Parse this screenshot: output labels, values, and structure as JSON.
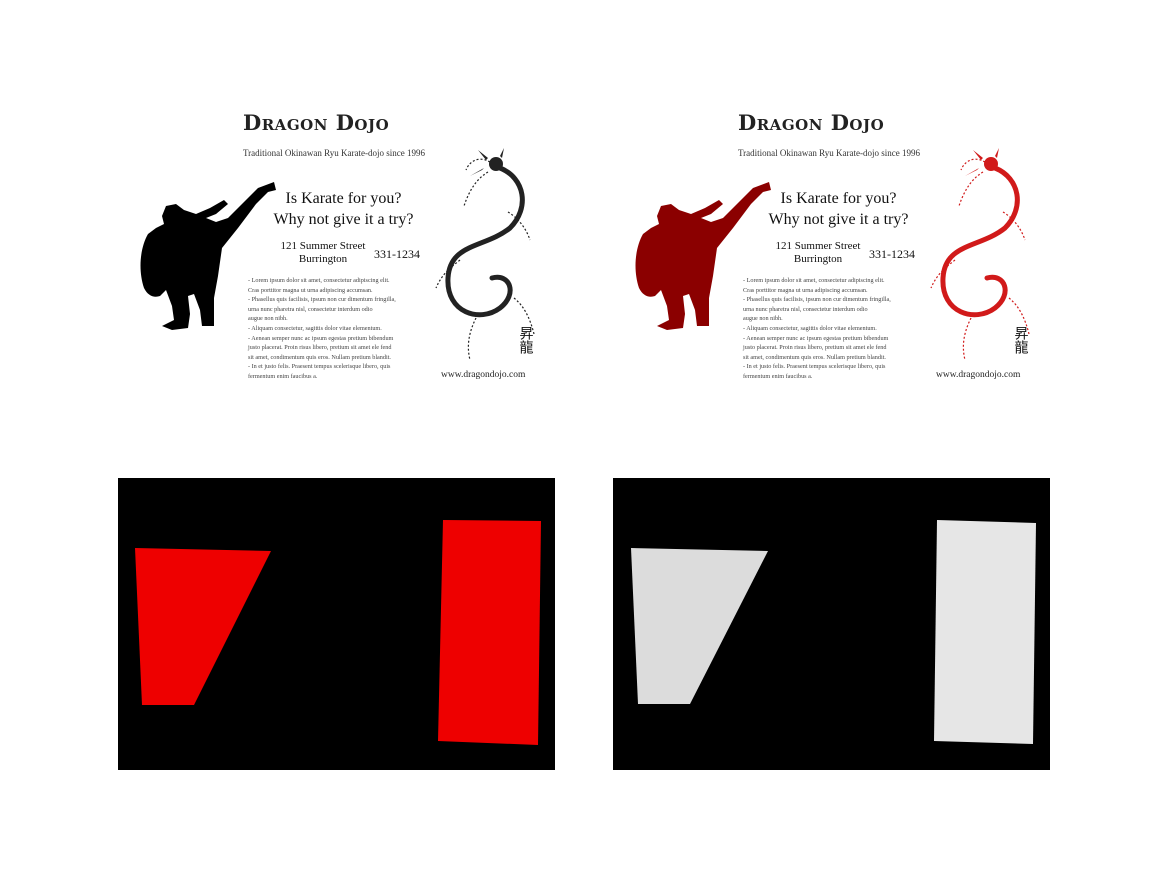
{
  "flyer": {
    "brand": "Dragon Dojo",
    "tagline": "Traditional Okinawan Ryu Karate-dojo since 1996",
    "headline": [
      "Is Karate for you?",
      "Why not give it a try?"
    ],
    "address": [
      "121 Summer Street",
      "Burrington"
    ],
    "phone": "331-1234",
    "body_lines": [
      "- Lorem ipsum dolor sit amet, consectetur adipiscing elit.",
      "  Cras porttitor magna ut urna adipiscing accumsan.",
      "- Phasellus quis facilisis, ipsum non cur dimentum fringilla,",
      "  urna nunc pharetra nisl, consectetur interdum odio",
      "  augue non nibh.",
      "- Aliquam consectetur, sagittis dolor vitae elementum.",
      "- Aenean semper nunc ac ipsum egestas pretium bibendum",
      "  justo placerat. Proin risus libero, pretium sit amet ele fend",
      "  sit amet, condimentum quis eros. Nullam pretium blandit.",
      "- In et justo felis. Praesent tempus scelerisque libero, quis",
      "  fermentum enim faucibus a."
    ],
    "website": "www.dragondojo.com",
    "seal_glyphs": "昇龍"
  },
  "colors": {
    "silhouette_dark": "#000000",
    "silhouette_red": "#8b0000",
    "dragon_dark": "#222222",
    "dragon_red": "#d11a1a",
    "mask_background": "#000000",
    "mask_red": "#ee0000",
    "mask_gray_quad": "#dcdcdc",
    "mask_gray_rect": "#e6e6e6"
  },
  "icons": {
    "kicker": "karate-kicker-silhouette",
    "dragon": "dragon-illustration",
    "seal": "kanji-seal"
  }
}
